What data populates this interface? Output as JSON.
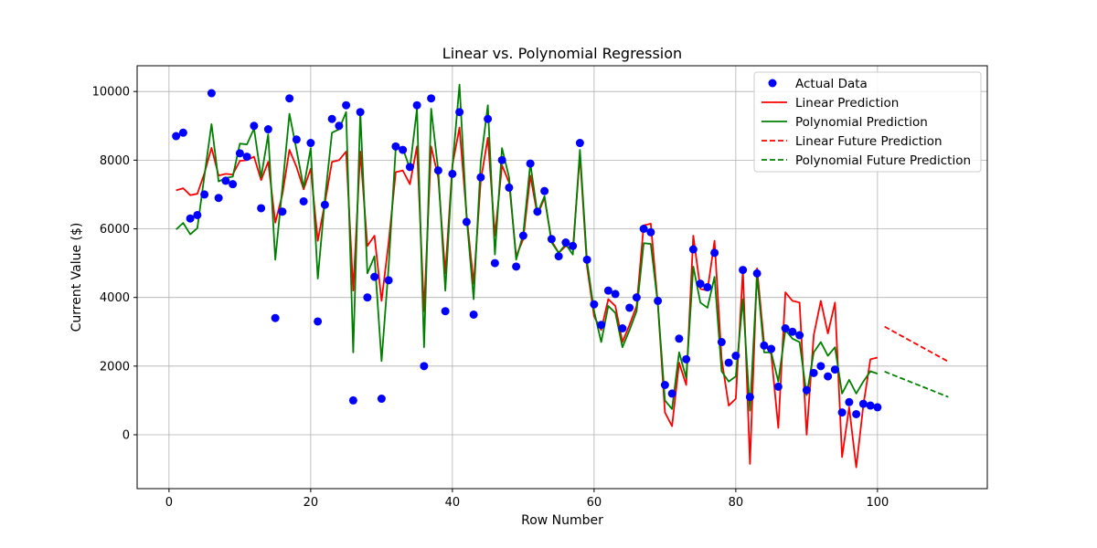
{
  "chart_data": {
    "type": "line",
    "title": "Linear vs. Polynomial Regression",
    "xlabel": "Row Number",
    "ylabel": "Current Value ($)",
    "xlim": [
      -4.5,
      115.5
    ],
    "ylim": [
      -1570,
      10750
    ],
    "xticks": [
      0,
      20,
      40,
      60,
      80,
      100
    ],
    "yticks": [
      0,
      2000,
      4000,
      6000,
      8000,
      10000
    ],
    "grid": true,
    "legend_position": "top-right",
    "colors": {
      "actual": "#0000ff",
      "linear": "#ff0000",
      "polynomial": "#008000",
      "grid": "#b0b0b0"
    },
    "x": [
      1,
      2,
      3,
      4,
      5,
      6,
      7,
      8,
      9,
      10,
      11,
      12,
      13,
      14,
      15,
      16,
      17,
      18,
      19,
      20,
      21,
      22,
      23,
      24,
      25,
      26,
      27,
      28,
      29,
      30,
      31,
      32,
      33,
      34,
      35,
      36,
      37,
      38,
      39,
      40,
      41,
      42,
      43,
      44,
      45,
      46,
      47,
      48,
      49,
      50,
      51,
      52,
      53,
      54,
      55,
      56,
      57,
      58,
      59,
      60,
      61,
      62,
      63,
      64,
      65,
      66,
      67,
      68,
      69,
      70,
      71,
      72,
      73,
      74,
      75,
      76,
      77,
      78,
      79,
      80,
      81,
      82,
      83,
      84,
      85,
      86,
      87,
      88,
      89,
      90,
      91,
      92,
      93,
      94,
      95,
      96,
      97,
      98,
      99,
      100
    ],
    "series": [
      {
        "name": "Actual Data",
        "kind": "scatter",
        "color": "#0000ff",
        "values": [
          8700,
          8800,
          6300,
          6400,
          7000,
          9950,
          6900,
          7400,
          7300,
          8200,
          8100,
          9000,
          6600,
          8900,
          3400,
          6500,
          9800,
          8600,
          6800,
          8500,
          3300,
          6700,
          9200,
          9000,
          9600,
          1000,
          9400,
          4000,
          4600,
          1050,
          4500,
          8400,
          8300,
          7800,
          9600,
          2000,
          9800,
          7700,
          3600,
          7600,
          9400,
          6200,
          3500,
          7500,
          9200,
          5000,
          8000,
          7200,
          4900,
          5800,
          7900,
          6500,
          7100,
          5700,
          5200,
          5600,
          5500,
          8500,
          5100,
          3800,
          3200,
          4200,
          4100,
          3100,
          3700,
          4000,
          6000,
          5900,
          3900,
          1450,
          1200,
          2800,
          2200,
          5400,
          4400,
          4300,
          5300,
          2700,
          2100,
          2300,
          4800,
          1100,
          4700,
          2600,
          2500,
          1400,
          3100,
          3000,
          2900,
          1300,
          1800,
          2000,
          1700,
          1900,
          650,
          950,
          600,
          900,
          850,
          800
        ]
      },
      {
        "name": "Linear Prediction",
        "kind": "line",
        "color": "#ff0000",
        "values": [
          7120,
          7180,
          6980,
          7020,
          7620,
          8360,
          7550,
          7600,
          7580,
          7980,
          8000,
          8100,
          7420,
          7950,
          6180,
          7000,
          8300,
          7800,
          7150,
          7750,
          5650,
          6750,
          7950,
          8000,
          8250,
          4200,
          8250,
          5500,
          5800,
          3900,
          5600,
          7650,
          7700,
          7300,
          8400,
          3600,
          8400,
          7500,
          4700,
          7850,
          8950,
          6400,
          4400,
          7400,
          8650,
          5800,
          7850,
          7350,
          5200,
          5700,
          7550,
          6400,
          6900,
          5650,
          5300,
          5500,
          5400,
          8150,
          4900,
          3450,
          3050,
          3950,
          3750,
          2700,
          3200,
          3750,
          6100,
          6150,
          3800,
          650,
          250,
          2100,
          1450,
          5800,
          4250,
          4200,
          5650,
          2200,
          850,
          1050,
          4800,
          -850,
          4850,
          2650,
          2350,
          200,
          4150,
          3900,
          3850,
          0,
          2900,
          3900,
          2950,
          3850,
          -650,
          800,
          -950,
          850,
          2200,
          2250
        ]
      },
      {
        "name": "Polynomial Prediction",
        "kind": "line",
        "color": "#008000",
        "values": [
          5980,
          6170,
          5840,
          6020,
          7550,
          9050,
          7380,
          7480,
          7520,
          8480,
          8460,
          8920,
          7500,
          8750,
          5100,
          7200,
          9350,
          8300,
          7200,
          8350,
          4550,
          6850,
          8800,
          8900,
          9400,
          2400,
          9400,
          4700,
          5200,
          2150,
          4900,
          8350,
          8350,
          7750,
          9500,
          2550,
          9500,
          7700,
          4200,
          7800,
          10200,
          6350,
          3950,
          7950,
          9600,
          5250,
          8350,
          7500,
          5100,
          5850,
          7900,
          6450,
          6950,
          5600,
          5300,
          5550,
          5250,
          8300,
          5050,
          3600,
          2700,
          3750,
          3550,
          2550,
          3050,
          3600,
          5580,
          5560,
          3800,
          1000,
          750,
          2400,
          1650,
          4900,
          3850,
          3700,
          4600,
          1850,
          1550,
          1700,
          3950,
          700,
          4650,
          2400,
          2400,
          1550,
          3050,
          2800,
          2700,
          1150,
          2400,
          2700,
          2300,
          2550,
          1200,
          1600,
          1200,
          1550,
          1850,
          1780
        ]
      }
    ],
    "future": {
      "x": [
        101,
        110
      ],
      "series": [
        {
          "name": "Linear Future Prediction",
          "kind": "dashed",
          "color": "#ff0000",
          "values": [
            3150,
            2130
          ]
        },
        {
          "name": "Polynomial Future Prediction",
          "kind": "dashed",
          "color": "#008000",
          "values": [
            1840,
            1100
          ]
        }
      ]
    }
  }
}
